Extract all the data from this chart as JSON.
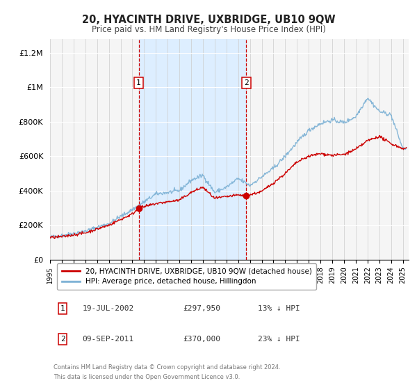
{
  "title": "20, HYACINTH DRIVE, UXBRIDGE, UB10 9QW",
  "subtitle": "Price paid vs. HM Land Registry's House Price Index (HPI)",
  "xlim": [
    1995.0,
    2025.5
  ],
  "ylim": [
    0,
    1280000
  ],
  "yticks": [
    0,
    200000,
    400000,
    600000,
    800000,
    1000000,
    1200000
  ],
  "ytick_labels": [
    "£0",
    "£200K",
    "£400K",
    "£600K",
    "£800K",
    "£1M",
    "£1.2M"
  ],
  "sale1_date": 2002.54,
  "sale1_price": 297950,
  "sale1_label": "19-JUL-2002",
  "sale1_text": "£297,950",
  "sale1_pct": "13% ↓ HPI",
  "sale2_date": 2011.69,
  "sale2_price": 370000,
  "sale2_label": "09-SEP-2011",
  "sale2_text": "£370,000",
  "sale2_pct": "23% ↓ HPI",
  "shade_color": "#ddeeff",
  "vline_color": "#cc0000",
  "red_line_color": "#cc0000",
  "blue_line_color": "#7ab0d4",
  "marker_color": "#cc0000",
  "legend_label_red": "20, HYACINTH DRIVE, UXBRIDGE, UB10 9QW (detached house)",
  "legend_label_blue": "HPI: Average price, detached house, Hillingdon",
  "footer1": "Contains HM Land Registry data © Crown copyright and database right 2024.",
  "footer2": "This data is licensed under the Open Government Licence v3.0.",
  "plot_bg": "#f5f5f5"
}
